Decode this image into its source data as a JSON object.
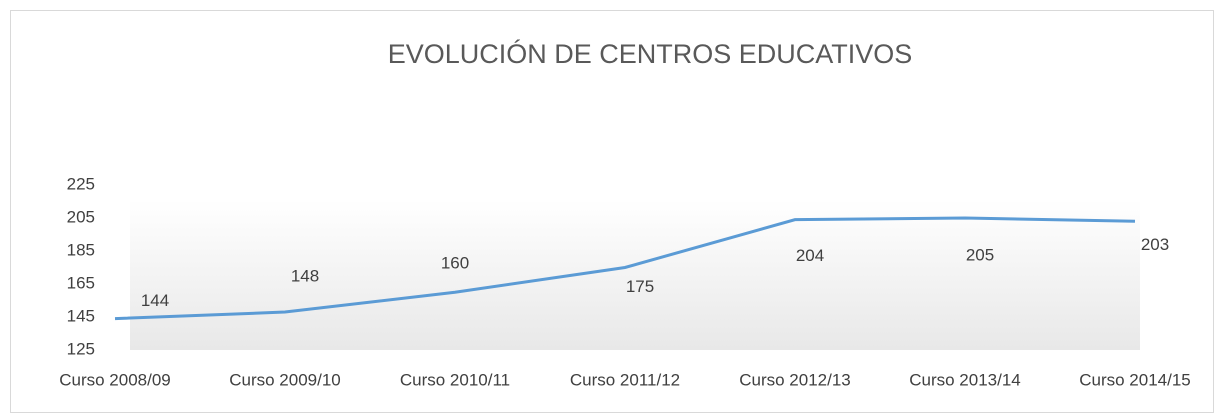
{
  "chart_data": {
    "type": "line",
    "title": "EVOLUCIÓN DE CENTROS EDUCATIVOS",
    "categories": [
      "Curso 2008/09",
      "Curso 2009/10",
      "Curso 2010/11",
      "Curso 2011/12",
      "Curso 2012/13",
      "Curso 2013/14",
      "Curso 2014/15"
    ],
    "values": [
      144,
      148,
      160,
      175,
      204,
      205,
      203
    ],
    "color": "#5b9bd5",
    "ylim": [
      125,
      225
    ],
    "yticks": [
      125,
      145,
      165,
      185,
      205,
      225
    ],
    "grid": false
  }
}
